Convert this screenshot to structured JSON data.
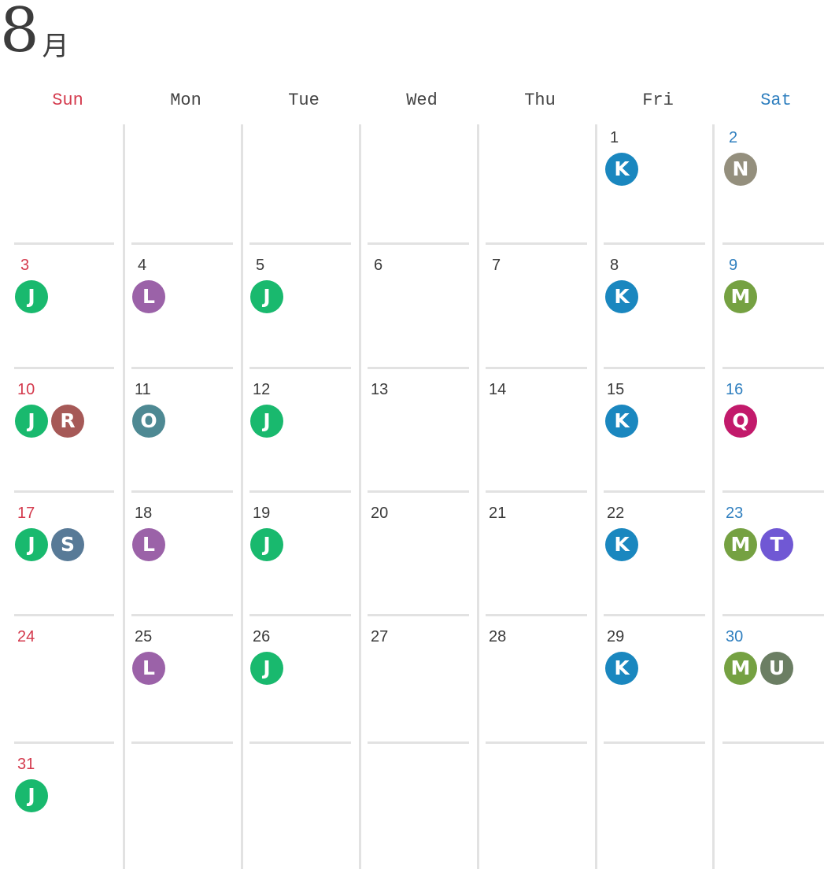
{
  "header": {
    "month_number": "8",
    "month_suffix": "月"
  },
  "weekdays": [
    {
      "label": "Sun",
      "kind": "sun"
    },
    {
      "label": "Mon",
      "kind": "weekday"
    },
    {
      "label": "Tue",
      "kind": "weekday"
    },
    {
      "label": "Wed",
      "kind": "weekday"
    },
    {
      "label": "Thu",
      "kind": "weekday"
    },
    {
      "label": "Fri",
      "kind": "weekday"
    },
    {
      "label": "Sat",
      "kind": "sat"
    }
  ],
  "colors": {
    "J": "#19b96e",
    "K": "#1a87bf",
    "L": "#9b62a8",
    "M": "#75a142",
    "N": "#948f7d",
    "O": "#4e8993",
    "Q": "#c21a6b",
    "R": "#a65957",
    "S": "#587a97",
    "T": "#7058d4",
    "U": "#6b7e63",
    "sunday_text": "#d43a4d",
    "saturday_text": "#2f7fbf",
    "grid_line": "#e2e2e2"
  },
  "weeks": [
    [
      {
        "day": "",
        "badges": []
      },
      {
        "day": "",
        "badges": []
      },
      {
        "day": "",
        "badges": []
      },
      {
        "day": "",
        "badges": []
      },
      {
        "day": "",
        "badges": []
      },
      {
        "day": "1",
        "badges": [
          "K"
        ]
      },
      {
        "day": "2",
        "badges": [
          "N"
        ]
      }
    ],
    [
      {
        "day": "3",
        "badges": [
          "J"
        ]
      },
      {
        "day": "4",
        "badges": [
          "L"
        ]
      },
      {
        "day": "5",
        "badges": [
          "J"
        ]
      },
      {
        "day": "6",
        "badges": []
      },
      {
        "day": "7",
        "badges": []
      },
      {
        "day": "8",
        "badges": [
          "K"
        ]
      },
      {
        "day": "9",
        "badges": [
          "M"
        ]
      }
    ],
    [
      {
        "day": "10",
        "badges": [
          "J",
          "R"
        ]
      },
      {
        "day": "11",
        "badges": [
          "O"
        ]
      },
      {
        "day": "12",
        "badges": [
          "J"
        ]
      },
      {
        "day": "13",
        "badges": []
      },
      {
        "day": "14",
        "badges": []
      },
      {
        "day": "15",
        "badges": [
          "K"
        ]
      },
      {
        "day": "16",
        "badges": [
          "Q"
        ]
      }
    ],
    [
      {
        "day": "17",
        "badges": [
          "J",
          "S"
        ]
      },
      {
        "day": "18",
        "badges": [
          "L"
        ]
      },
      {
        "day": "19",
        "badges": [
          "J"
        ]
      },
      {
        "day": "20",
        "badges": []
      },
      {
        "day": "21",
        "badges": []
      },
      {
        "day": "22",
        "badges": [
          "K"
        ]
      },
      {
        "day": "23",
        "badges": [
          "M",
          "T"
        ]
      }
    ],
    [
      {
        "day": "24",
        "badges": []
      },
      {
        "day": "25",
        "badges": [
          "L"
        ]
      },
      {
        "day": "26",
        "badges": [
          "J"
        ]
      },
      {
        "day": "27",
        "badges": []
      },
      {
        "day": "28",
        "badges": []
      },
      {
        "day": "29",
        "badges": [
          "K"
        ]
      },
      {
        "day": "30",
        "badges": [
          "M",
          "U"
        ]
      }
    ],
    [
      {
        "day": "31",
        "badges": [
          "J"
        ]
      },
      {
        "day": "",
        "badges": []
      },
      {
        "day": "",
        "badges": []
      },
      {
        "day": "",
        "badges": []
      },
      {
        "day": "",
        "badges": []
      },
      {
        "day": "",
        "badges": []
      },
      {
        "day": "",
        "badges": []
      }
    ]
  ]
}
